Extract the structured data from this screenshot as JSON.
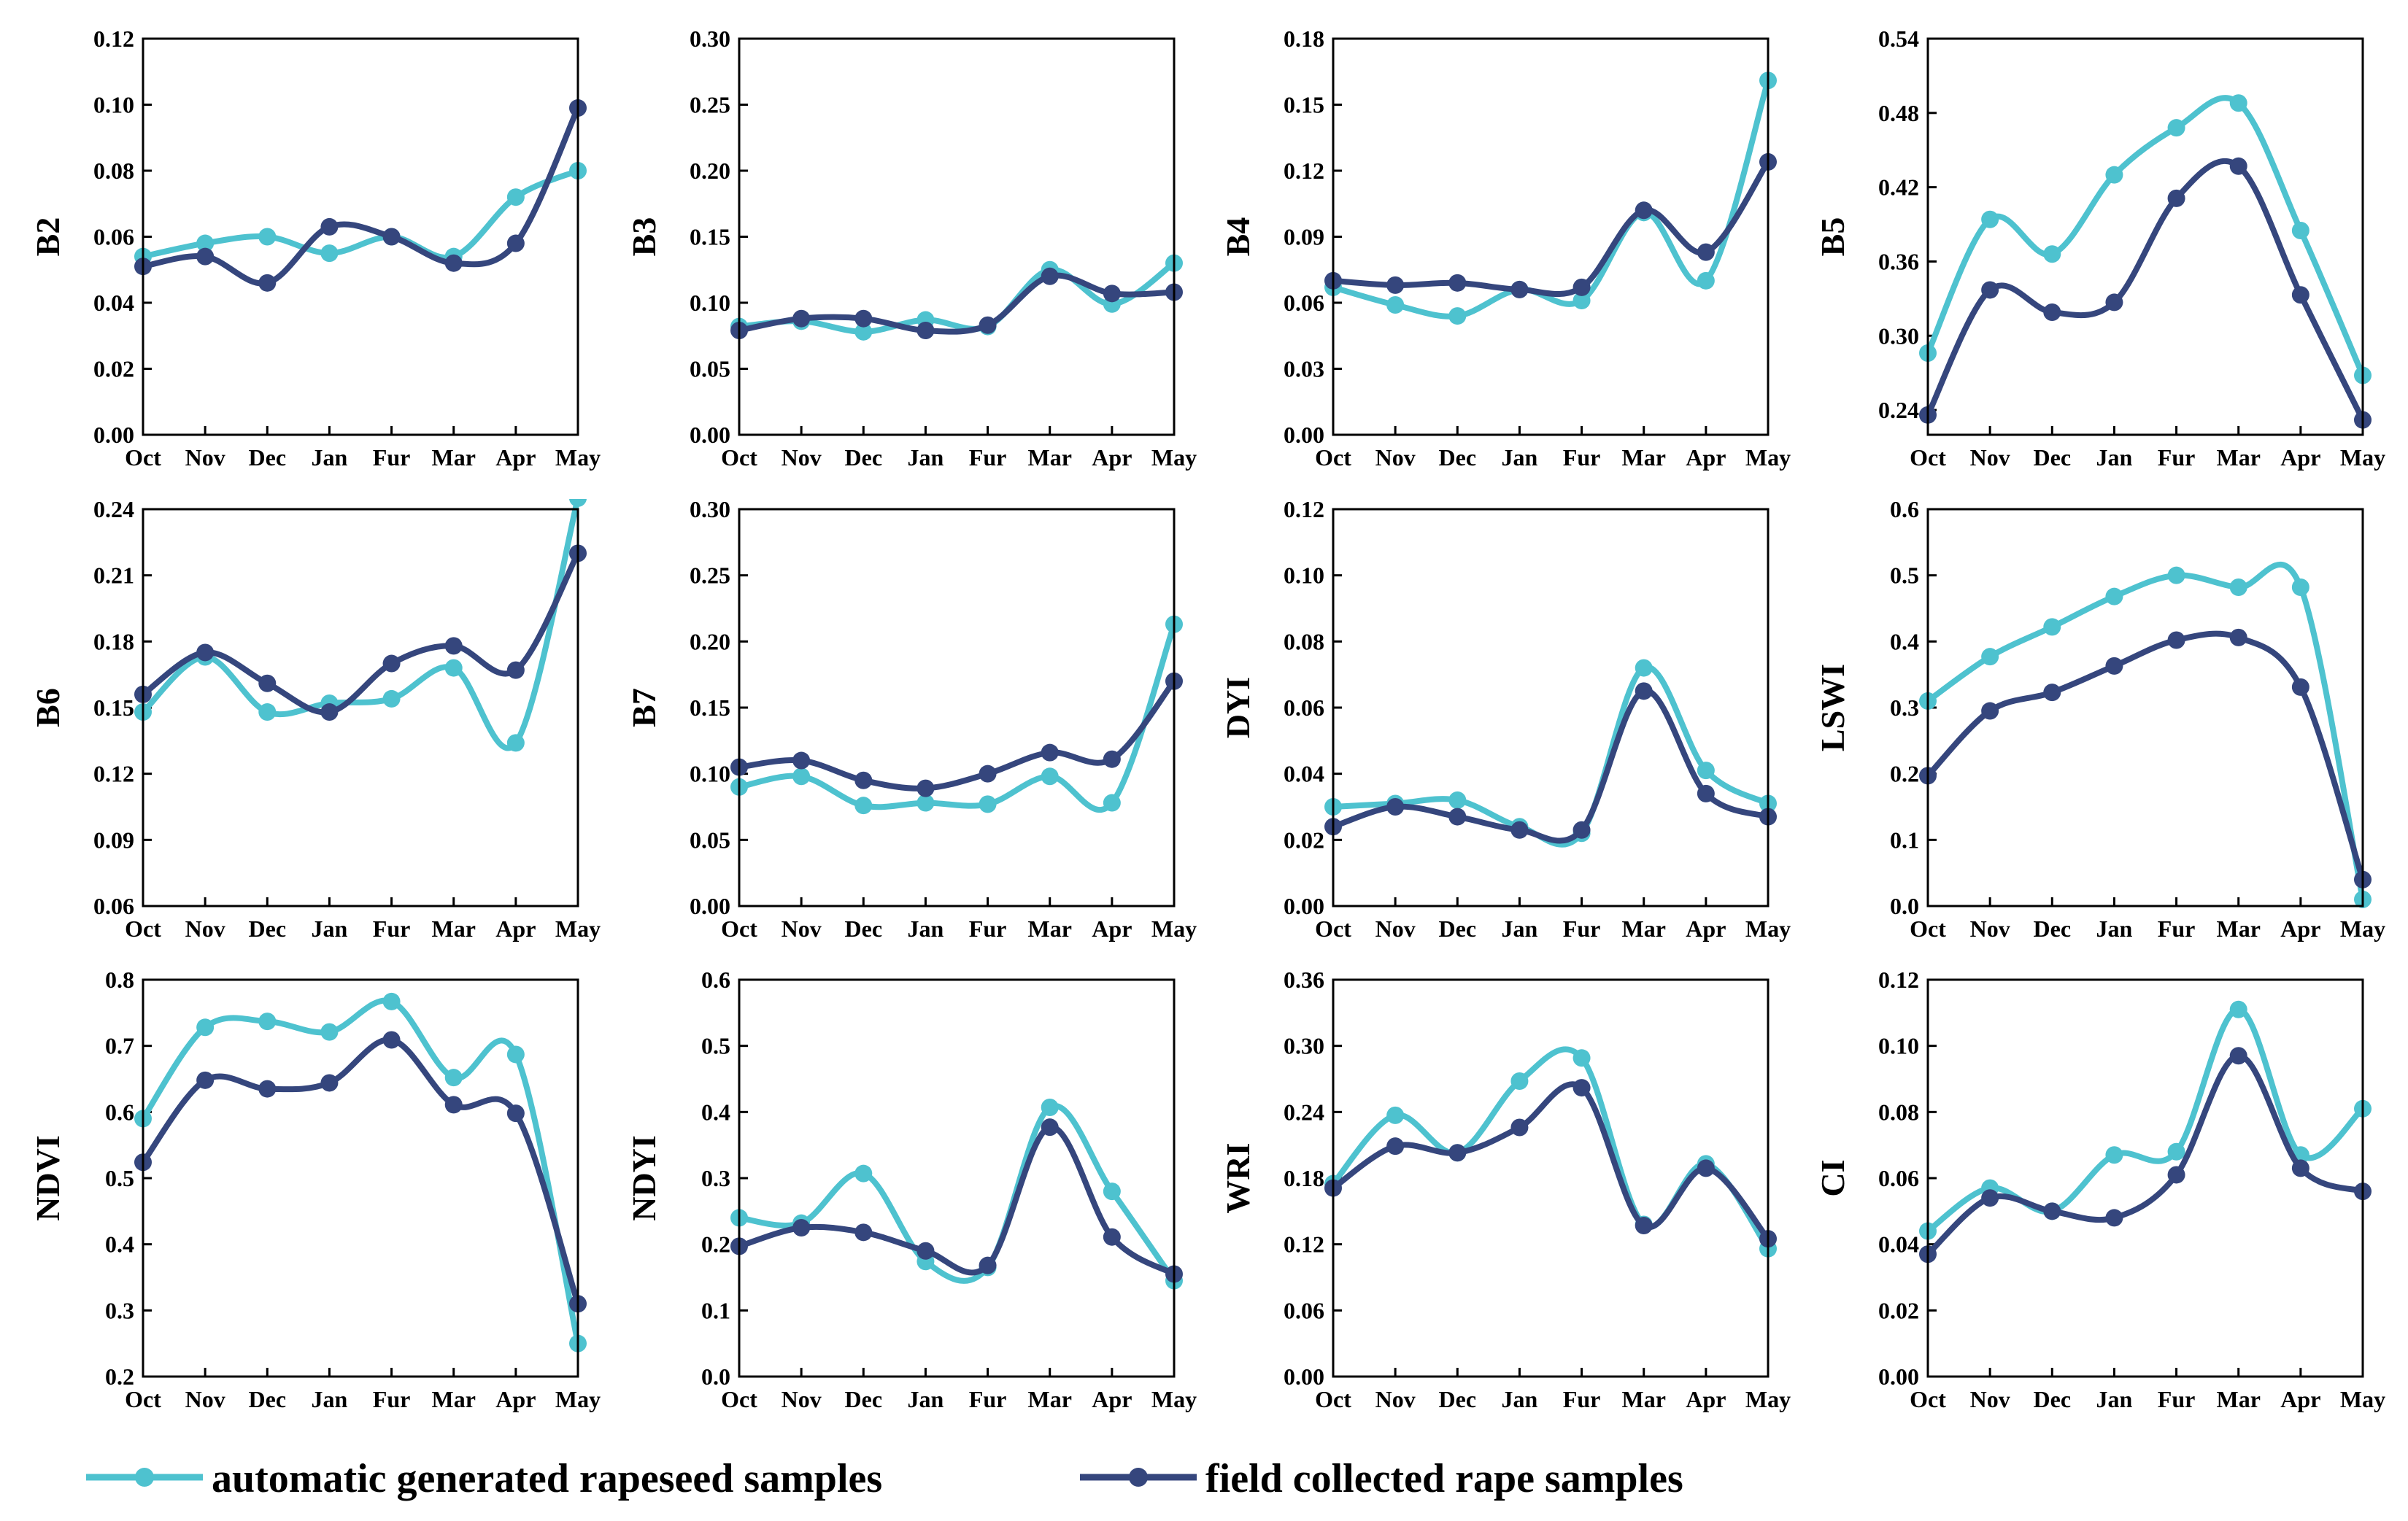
{
  "colors": {
    "auto": "#4EC2CF",
    "field": "#35467D"
  },
  "legend": {
    "auto_label": "automatic generated rapeseed samples",
    "field_label": "field collected rape samples"
  },
  "months": [
    "Oct",
    "Nov",
    "Dec",
    "Jan",
    "Fur",
    "Mar",
    "Apr",
    "May"
  ],
  "chart_data": [
    {
      "type": "line",
      "ylabel": "B2",
      "ylim": [
        0,
        0.12
      ],
      "yticks": [
        0,
        0.02,
        0.04,
        0.06,
        0.08,
        0.1,
        0.12
      ],
      "decimals": 2,
      "series": [
        {
          "name": "automatic generated rapeseed samples",
          "values": [
            0.054,
            0.058,
            0.06,
            0.055,
            0.06,
            0.054,
            0.072,
            0.08
          ]
        },
        {
          "name": "field collected rape samples",
          "values": [
            0.051,
            0.054,
            0.046,
            0.063,
            0.06,
            0.052,
            0.058,
            0.099
          ]
        }
      ]
    },
    {
      "type": "line",
      "ylabel": "B3",
      "ylim": [
        0,
        0.3
      ],
      "yticks": [
        0,
        0.05,
        0.1,
        0.15,
        0.2,
        0.25,
        0.3
      ],
      "decimals": 2,
      "series": [
        {
          "name": "automatic generated rapeseed samples",
          "values": [
            0.082,
            0.086,
            0.078,
            0.087,
            0.082,
            0.125,
            0.099,
            0.13
          ]
        },
        {
          "name": "field collected rape samples",
          "values": [
            0.079,
            0.088,
            0.088,
            0.079,
            0.083,
            0.12,
            0.107,
            0.108
          ]
        }
      ]
    },
    {
      "type": "line",
      "ylabel": "B4",
      "ylim": [
        0,
        0.18
      ],
      "yticks": [
        0,
        0.03,
        0.06,
        0.09,
        0.12,
        0.15,
        0.18
      ],
      "decimals": 2,
      "series": [
        {
          "name": "automatic generated rapeseed samples",
          "values": [
            0.067,
            0.059,
            0.054,
            0.066,
            0.061,
            0.101,
            0.07,
            0.161
          ]
        },
        {
          "name": "field collected rape samples",
          "values": [
            0.07,
            0.068,
            0.069,
            0.066,
            0.067,
            0.102,
            0.083,
            0.124
          ]
        }
      ]
    },
    {
      "type": "line",
      "ylabel": "B5",
      "ylim": [
        0.22,
        0.54
      ],
      "yticks": [
        0.24,
        0.3,
        0.36,
        0.42,
        0.48,
        0.54
      ],
      "decimals": 2,
      "series": [
        {
          "name": "automatic generated rapeseed samples",
          "values": [
            0.286,
            0.394,
            0.366,
            0.43,
            0.468,
            0.488,
            0.385,
            0.268
          ]
        },
        {
          "name": "field collected rape samples",
          "values": [
            0.236,
            0.337,
            0.319,
            0.327,
            0.411,
            0.437,
            0.333,
            0.232
          ]
        }
      ]
    },
    {
      "type": "line",
      "ylabel": "B6",
      "ylim": [
        0.06,
        0.24
      ],
      "yticks": [
        0.06,
        0.09,
        0.12,
        0.15,
        0.18,
        0.21,
        0.24
      ],
      "decimals": 2,
      "series": [
        {
          "name": "automatic generated rapeseed samples",
          "values": [
            0.148,
            0.173,
            0.148,
            0.152,
            0.154,
            0.168,
            0.134,
            0.245
          ]
        },
        {
          "name": "field collected rape samples",
          "values": [
            0.156,
            0.175,
            0.161,
            0.148,
            0.17,
            0.178,
            0.167,
            0.22
          ]
        }
      ]
    },
    {
      "type": "line",
      "ylabel": "B7",
      "ylim": [
        0,
        0.3
      ],
      "yticks": [
        0,
        0.05,
        0.1,
        0.15,
        0.2,
        0.25,
        0.3
      ],
      "decimals": 2,
      "series": [
        {
          "name": "automatic generated rapeseed samples",
          "values": [
            0.09,
            0.098,
            0.076,
            0.078,
            0.077,
            0.098,
            0.078,
            0.213
          ]
        },
        {
          "name": "field collected rape samples",
          "values": [
            0.105,
            0.11,
            0.095,
            0.089,
            0.1,
            0.116,
            0.111,
            0.17
          ]
        }
      ]
    },
    {
      "type": "line",
      "ylabel": "DYI",
      "ylim": [
        0,
        0.12
      ],
      "yticks": [
        0,
        0.02,
        0.04,
        0.06,
        0.08,
        0.1,
        0.12
      ],
      "decimals": 2,
      "series": [
        {
          "name": "automatic generated rapeseed samples",
          "values": [
            0.03,
            0.031,
            0.032,
            0.024,
            0.022,
            0.072,
            0.041,
            0.031
          ]
        },
        {
          "name": "field collected rape samples",
          "values": [
            0.024,
            0.03,
            0.027,
            0.023,
            0.023,
            0.065,
            0.034,
            0.027
          ]
        }
      ]
    },
    {
      "type": "line",
      "ylabel": "LSWI",
      "ylim": [
        0,
        0.6
      ],
      "yticks": [
        0,
        0.1,
        0.2,
        0.3,
        0.4,
        0.5,
        0.6
      ],
      "decimals": 1,
      "series": [
        {
          "name": "automatic generated rapeseed samples",
          "values": [
            0.31,
            0.377,
            0.422,
            0.468,
            0.5,
            0.482,
            0.482,
            0.01
          ]
        },
        {
          "name": "field collected rape samples",
          "values": [
            0.197,
            0.295,
            0.323,
            0.363,
            0.402,
            0.406,
            0.331,
            0.04
          ]
        }
      ]
    },
    {
      "type": "line",
      "ylabel": "NDVI",
      "ylim": [
        0.2,
        0.8
      ],
      "yticks": [
        0.2,
        0.3,
        0.4,
        0.5,
        0.6,
        0.7,
        0.8
      ],
      "decimals": 1,
      "series": [
        {
          "name": "automatic generated rapeseed samples",
          "values": [
            0.59,
            0.728,
            0.737,
            0.721,
            0.767,
            0.652,
            0.687,
            0.25
          ]
        },
        {
          "name": "field collected rape samples",
          "values": [
            0.524,
            0.648,
            0.635,
            0.644,
            0.709,
            0.611,
            0.598,
            0.31
          ]
        }
      ]
    },
    {
      "type": "line",
      "ylabel": "NDYI",
      "ylim": [
        0,
        0.6
      ],
      "yticks": [
        0,
        0.1,
        0.2,
        0.3,
        0.4,
        0.5,
        0.6
      ],
      "decimals": 1,
      "series": [
        {
          "name": "automatic generated rapeseed samples",
          "values": [
            0.24,
            0.232,
            0.307,
            0.174,
            0.165,
            0.407,
            0.28,
            0.145
          ]
        },
        {
          "name": "field collected rape samples",
          "values": [
            0.197,
            0.225,
            0.218,
            0.19,
            0.168,
            0.377,
            0.211,
            0.155
          ]
        }
      ]
    },
    {
      "type": "line",
      "ylabel": "WRI",
      "ylim": [
        0,
        0.36
      ],
      "yticks": [
        0,
        0.06,
        0.12,
        0.18,
        0.24,
        0.3,
        0.36
      ],
      "decimals": 2,
      "series": [
        {
          "name": "automatic generated rapeseed samples",
          "values": [
            0.175,
            0.237,
            0.203,
            0.268,
            0.289,
            0.138,
            0.193,
            0.116
          ]
        },
        {
          "name": "field collected rape samples",
          "values": [
            0.171,
            0.209,
            0.203,
            0.226,
            0.262,
            0.137,
            0.189,
            0.125
          ]
        }
      ]
    },
    {
      "type": "line",
      "ylabel": "CI",
      "ylim": [
        0,
        0.12
      ],
      "yticks": [
        0,
        0.02,
        0.04,
        0.06,
        0.08,
        0.1,
        0.12
      ],
      "decimals": 2,
      "series": [
        {
          "name": "automatic generated rapeseed samples",
          "values": [
            0.044,
            0.057,
            0.05,
            0.067,
            0.068,
            0.111,
            0.067,
            0.081
          ]
        },
        {
          "name": "field collected rape samples",
          "values": [
            0.037,
            0.054,
            0.05,
            0.048,
            0.061,
            0.097,
            0.063,
            0.056
          ]
        }
      ]
    }
  ]
}
